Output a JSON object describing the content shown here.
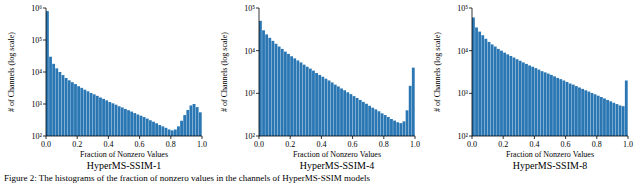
{
  "caption": "Figure 2: The histograms of the fraction of nonzero values in the channels of HyperMS-SSIM models",
  "chart_data": [
    {
      "type": "histogram",
      "title": "HyperMS-SSIM-1",
      "x_label": "Fraction of Nonzero Values",
      "y_label": "# of Channels (log scale)",
      "color": "#2a77b4",
      "log": "y",
      "bins": [
        0,
        0.02,
        0.04,
        0.06,
        0.08,
        0.1,
        0.12,
        0.14,
        0.16,
        0.18,
        0.2,
        0.22,
        0.24,
        0.26,
        0.28,
        0.3,
        0.32,
        0.34,
        0.36,
        0.38,
        0.4,
        0.42,
        0.44,
        0.46,
        0.48,
        0.5,
        0.52,
        0.54,
        0.56,
        0.58,
        0.6,
        0.62,
        0.64,
        0.66,
        0.68,
        0.7,
        0.72,
        0.74,
        0.76,
        0.78,
        0.8,
        0.82,
        0.84,
        0.86,
        0.88,
        0.9,
        0.92,
        0.94,
        0.96,
        0.98,
        1
      ],
      "values": [
        800000,
        30000,
        18000,
        13000,
        10000,
        8000,
        6500,
        5500,
        4800,
        4200,
        3600,
        3200,
        2800,
        2500,
        2200,
        2000,
        1800,
        1600,
        1450,
        1300,
        1150,
        1050,
        950,
        850,
        780,
        700,
        640,
        580,
        520,
        470,
        430,
        390,
        350,
        310,
        280,
        250,
        220,
        200,
        180,
        160,
        150,
        160,
        200,
        300,
        450,
        650,
        900,
        1000,
        800,
        550
      ],
      "xlim": [
        0,
        1
      ],
      "xticks": [
        {
          "value": 0,
          "label": "0.0"
        },
        0.2,
        0.4,
        0.6,
        0.8,
        {
          "value": 1,
          "label": "1.0"
        }
      ],
      "ylim": [
        100,
        1000000
      ],
      "yticks": [
        {
          "value": 100,
          "label": "10²"
        },
        {
          "value": 1000,
          "label": "10³"
        },
        {
          "value": 10000,
          "label": "10⁴"
        },
        {
          "value": 100000,
          "label": "10⁵"
        },
        {
          "value": 1000000,
          "label": "10⁶"
        }
      ]
    },
    {
      "type": "histogram",
      "title": "HyperMS-SSIM-4",
      "x_label": "Fraction of Nonzero Values",
      "y_label": "# of Channels (log scale)",
      "color": "#2a77b4",
      "log": "y",
      "bins": [
        0,
        0.02,
        0.04,
        0.06,
        0.08,
        0.1,
        0.12,
        0.14,
        0.16,
        0.18,
        0.2,
        0.22,
        0.24,
        0.26,
        0.28,
        0.3,
        0.32,
        0.34,
        0.36,
        0.38,
        0.4,
        0.42,
        0.44,
        0.46,
        0.48,
        0.5,
        0.52,
        0.54,
        0.56,
        0.58,
        0.6,
        0.62,
        0.64,
        0.66,
        0.68,
        0.7,
        0.72,
        0.74,
        0.76,
        0.78,
        0.8,
        0.82,
        0.84,
        0.86,
        0.88,
        0.9,
        0.92,
        0.94,
        0.96,
        0.98,
        1
      ],
      "values": [
        50000,
        30000,
        24000,
        20000,
        17000,
        14500,
        12500,
        11000,
        9500,
        8400,
        7400,
        6600,
        5900,
        5300,
        4700,
        4200,
        3800,
        3400,
        3000,
        2700,
        2450,
        2200,
        2000,
        1800,
        1600,
        1450,
        1300,
        1180,
        1060,
        960,
        860,
        780,
        700,
        630,
        570,
        510,
        460,
        420,
        380,
        340,
        310,
        280,
        250,
        230,
        210,
        200,
        220,
        400,
        1500,
        4000
      ],
      "xlim": [
        0,
        1
      ],
      "xticks": [
        {
          "value": 0,
          "label": "0.0"
        },
        0.2,
        0.4,
        0.6,
        0.8,
        {
          "value": 1,
          "label": "1.0"
        }
      ],
      "ylim": [
        100,
        100000
      ],
      "yticks": [
        {
          "value": 100,
          "label": "10²"
        },
        {
          "value": 1000,
          "label": "10³"
        },
        {
          "value": 10000,
          "label": "10⁴"
        },
        {
          "value": 100000,
          "label": "10⁵"
        }
      ]
    },
    {
      "type": "histogram",
      "title": "HyperMS-SSIM-8",
      "x_label": "Fraction of Nonzero Values",
      "y_label": "# of Channels (log scale)",
      "color": "#2a77b4",
      "log": "y",
      "bins": [
        0,
        0.02,
        0.04,
        0.06,
        0.08,
        0.1,
        0.12,
        0.14,
        0.16,
        0.18,
        0.2,
        0.22,
        0.24,
        0.26,
        0.28,
        0.3,
        0.32,
        0.34,
        0.36,
        0.38,
        0.4,
        0.42,
        0.44,
        0.46,
        0.48,
        0.5,
        0.52,
        0.54,
        0.56,
        0.58,
        0.6,
        0.62,
        0.64,
        0.66,
        0.68,
        0.7,
        0.72,
        0.74,
        0.76,
        0.78,
        0.8,
        0.82,
        0.84,
        0.86,
        0.88,
        0.9,
        0.92,
        0.94,
        0.96,
        0.98,
        1
      ],
      "values": [
        60000,
        35000,
        28000,
        23000,
        19000,
        16000,
        14000,
        12500,
        11000,
        10000,
        9000,
        8200,
        7500,
        6900,
        6300,
        5800,
        5300,
        4900,
        4500,
        4200,
        3900,
        3600,
        3300,
        3100,
        2900,
        2700,
        2500,
        2300,
        2150,
        2000,
        1850,
        1700,
        1600,
        1480,
        1370,
        1270,
        1180,
        1100,
        1020,
        950,
        880,
        820,
        760,
        700,
        650,
        600,
        560,
        520,
        500,
        2000
      ],
      "xlim": [
        0,
        1
      ],
      "xticks": [
        {
          "value": 0,
          "label": "0.0"
        },
        0.2,
        0.4,
        0.6,
        0.8,
        {
          "value": 1,
          "label": "1.0"
        }
      ],
      "ylim": [
        100,
        100000
      ],
      "yticks": [
        {
          "value": 100,
          "label": "10²"
        },
        {
          "value": 1000,
          "label": "10³"
        },
        {
          "value": 10000,
          "label": "10⁴"
        },
        {
          "value": 100000,
          "label": "10⁵"
        }
      ]
    }
  ]
}
